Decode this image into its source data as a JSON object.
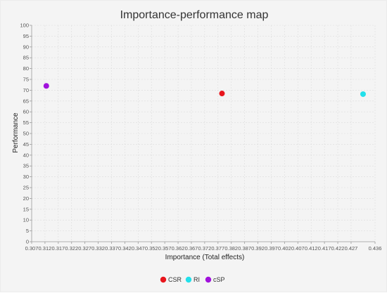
{
  "chart_data": {
    "type": "scatter",
    "title": "Importance-performance map",
    "xlabel": "Importance (Total effects)",
    "ylabel": "Performance",
    "xlim": [
      0.307,
      0.436
    ],
    "ylim": [
      0,
      100
    ],
    "x_ticks": [
      "0.307",
      "0.312",
      "0.317",
      "0.322",
      "0.327",
      "0.332",
      "0.337",
      "0.342",
      "0.347",
      "0.352",
      "0.357",
      "0.362",
      "0.367",
      "0.372",
      "0.377",
      "0.382",
      "0.387",
      "0.392",
      "0.397",
      "0.402",
      "0.407",
      "0.412",
      "0.417",
      "0.422",
      "0.427",
      "0.436"
    ],
    "y_ticks": [
      "0",
      "5",
      "10",
      "15",
      "20",
      "25",
      "30",
      "35",
      "40",
      "45",
      "50",
      "55",
      "60",
      "65",
      "70",
      "75",
      "80",
      "85",
      "90",
      "95",
      "100"
    ],
    "grid": true,
    "legend_position": "bottom",
    "series": [
      {
        "name": "CSR",
        "color": "#e8161d",
        "x": [
          0.3785
        ],
        "y": [
          68.5
        ]
      },
      {
        "name": "RI",
        "color": "#22e0ea",
        "x": [
          0.4315
        ],
        "y": [
          68.2
        ]
      },
      {
        "name": "cSP",
        "color": "#a112dc",
        "x": [
          0.3125
        ],
        "y": [
          72.0
        ]
      }
    ]
  }
}
